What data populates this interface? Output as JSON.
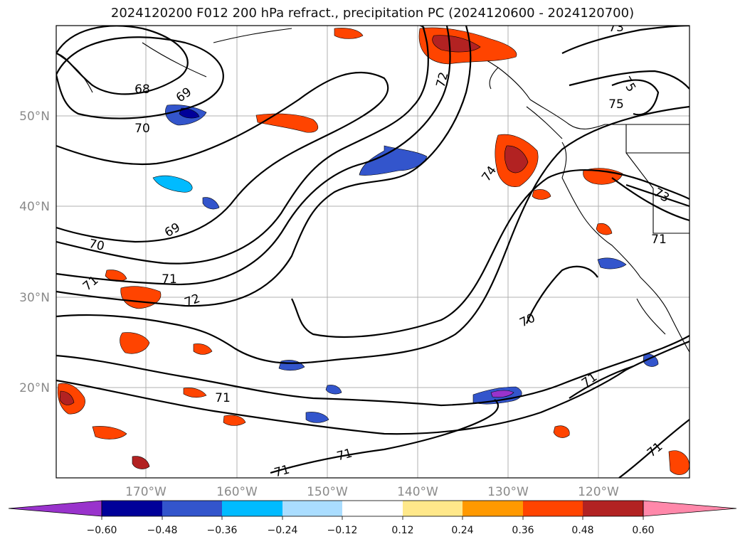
{
  "title": "2024120200 F012 200 hPa refract., precipitation PC (2024120600 - 2024120700)",
  "map": {
    "lat_labels": [
      "50°N",
      "40°N",
      "30°N",
      "20°N"
    ],
    "lon_labels": [
      "170°W",
      "160°W",
      "150°W",
      "140°W",
      "130°W",
      "120°W"
    ],
    "contour_labels": [
      "68",
      "69",
      "70",
      "69",
      "70",
      "71",
      "71",
      "72",
      "72",
      "74",
      "73",
      "75",
      "75",
      "73",
      "71",
      "70",
      "71",
      "71",
      "71",
      "71",
      "71"
    ]
  },
  "colorbar": {
    "tick_labels": [
      "−0.60",
      "−0.48",
      "−0.36",
      "−0.24",
      "−0.12",
      "0.12",
      "0.24",
      "0.36",
      "0.48",
      "0.60"
    ],
    "colors": [
      "#9933cc",
      "#000099",
      "#3355cc",
      "#00bbff",
      "#aaddff",
      "#ffffff",
      "#ffe88a",
      "#ff9900",
      "#ff4400",
      "#b22222",
      "#ff88aa"
    ]
  }
}
